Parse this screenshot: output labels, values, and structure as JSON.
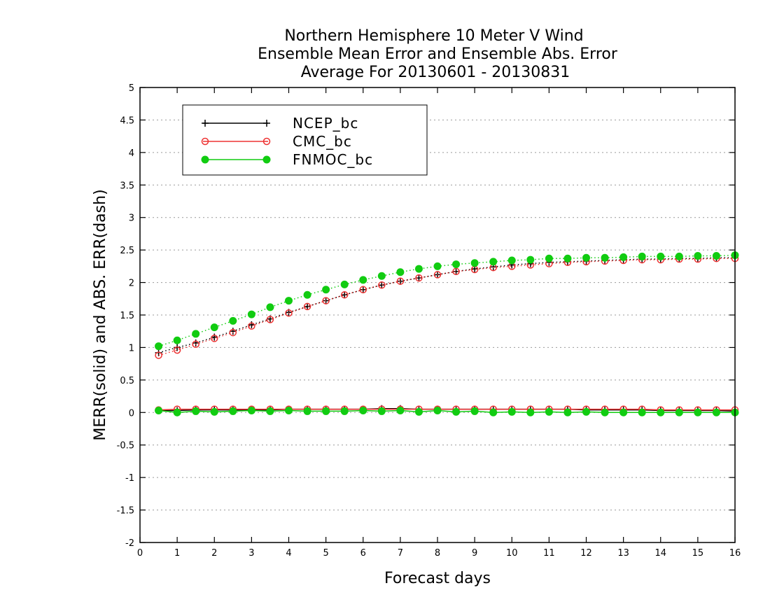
{
  "chart_data": {
    "type": "line",
    "title": [
      "Northern Hemisphere 10 Meter V Wind",
      "Ensemble Mean Error and Ensemble Abs. Error",
      "Average For 20130601 - 20130831"
    ],
    "xlabel": "Forecast days",
    "ylabel": "MERR(solid) and ABS. ERR(dash)",
    "xlim": [
      0,
      16
    ],
    "ylim": [
      -2,
      5
    ],
    "xticks": [
      0,
      1,
      2,
      3,
      4,
      5,
      6,
      7,
      8,
      9,
      10,
      11,
      12,
      13,
      14,
      15,
      16
    ],
    "yticks": [
      -2,
      -1.5,
      -1,
      -0.5,
      0,
      0.5,
      1,
      1.5,
      2,
      2.5,
      3,
      3.5,
      4,
      4.5,
      5
    ],
    "grid": "horizontal dotted",
    "legend_position": "top-left",
    "x": [
      0.5,
      1,
      1.5,
      2,
      2.5,
      3,
      3.5,
      4,
      4.5,
      5,
      5.5,
      6,
      6.5,
      7,
      7.5,
      8,
      8.5,
      9,
      9.5,
      10,
      10.5,
      11,
      11.5,
      12,
      12.5,
      13,
      13.5,
      14,
      14.5,
      15,
      15.5,
      16
    ],
    "series": [
      {
        "name": "NCEP_bc",
        "color": "#000000",
        "marker": "plus",
        "merr": [
          0.03,
          0.03,
          0.04,
          0.04,
          0.04,
          0.04,
          0.04,
          0.05,
          0.05,
          0.05,
          0.05,
          0.05,
          0.06,
          0.06,
          0.05,
          0.05,
          0.05,
          0.05,
          0.05,
          0.05,
          0.05,
          0.05,
          0.05,
          0.04,
          0.04,
          0.04,
          0.04,
          0.03,
          0.03,
          0.03,
          0.03,
          0.02
        ],
        "abs_err": [
          0.92,
          1.0,
          1.07,
          1.16,
          1.25,
          1.35,
          1.44,
          1.54,
          1.63,
          1.72,
          1.81,
          1.89,
          1.96,
          2.02,
          2.07,
          2.12,
          2.17,
          2.21,
          2.24,
          2.27,
          2.29,
          2.31,
          2.32,
          2.33,
          2.34,
          2.35,
          2.36,
          2.36,
          2.37,
          2.37,
          2.38,
          2.38
        ]
      },
      {
        "name": "CMC_bc",
        "color": "#ee3333",
        "marker": "open-circle",
        "merr": [
          0.04,
          0.05,
          0.05,
          0.05,
          0.05,
          0.05,
          0.05,
          0.05,
          0.05,
          0.05,
          0.05,
          0.05,
          0.05,
          0.05,
          0.05,
          0.05,
          0.05,
          0.05,
          0.05,
          0.05,
          0.05,
          0.05,
          0.05,
          0.05,
          0.05,
          0.05,
          0.05,
          0.04,
          0.04,
          0.04,
          0.04,
          0.04
        ],
        "abs_err": [
          0.88,
          0.96,
          1.05,
          1.14,
          1.23,
          1.33,
          1.43,
          1.53,
          1.63,
          1.72,
          1.81,
          1.89,
          1.96,
          2.02,
          2.07,
          2.12,
          2.17,
          2.2,
          2.23,
          2.25,
          2.27,
          2.29,
          2.31,
          2.32,
          2.33,
          2.34,
          2.35,
          2.35,
          2.36,
          2.36,
          2.37,
          2.37
        ]
      },
      {
        "name": "FNMOC_bc",
        "color": "#11cc11",
        "marker": "filled-circle",
        "merr": [
          0.03,
          0.0,
          0.02,
          0.01,
          0.02,
          0.03,
          0.02,
          0.03,
          0.02,
          0.02,
          0.02,
          0.03,
          0.02,
          0.03,
          0.01,
          0.03,
          0.01,
          0.02,
          0.0,
          0.01,
          0.0,
          0.01,
          0.0,
          0.01,
          0.0,
          0.0,
          0.0,
          0.0,
          0.0,
          0.0,
          0.0,
          0.0
        ],
        "abs_err": [
          1.02,
          1.11,
          1.21,
          1.31,
          1.41,
          1.51,
          1.62,
          1.72,
          1.81,
          1.89,
          1.97,
          2.04,
          2.1,
          2.16,
          2.21,
          2.25,
          2.28,
          2.3,
          2.32,
          2.34,
          2.35,
          2.37,
          2.37,
          2.38,
          2.38,
          2.39,
          2.4,
          2.4,
          2.4,
          2.41,
          2.41,
          2.42
        ]
      }
    ]
  }
}
